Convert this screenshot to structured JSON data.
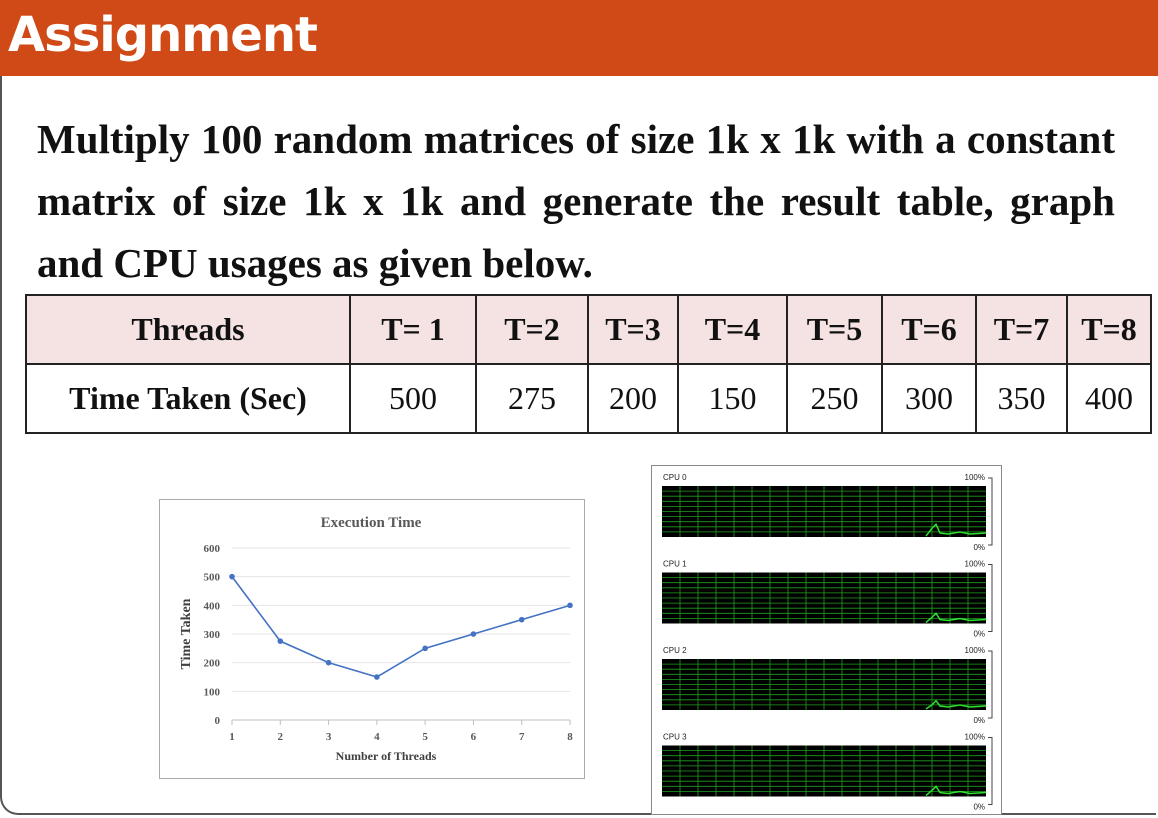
{
  "header": {
    "title": "Assignment"
  },
  "description": "Multiply 100 random matrices of size 1k x 1k with a constant matrix of size 1k x 1k and generate the result table, graph and CPU usages as given below.",
  "table": {
    "row1_header": "Threads",
    "row2_header": "Time Taken (Sec)",
    "threads": [
      "T= 1",
      "T=2",
      "T=3",
      "T=4",
      "T=5",
      "T=6",
      "T=7",
      "T=8"
    ],
    "times": [
      "500",
      "275",
      "200",
      "150",
      "250",
      "300",
      "350",
      "400"
    ]
  },
  "chart_data": {
    "type": "line",
    "title": "Execution Time",
    "xlabel": "Number of Threads",
    "ylabel": "Time Taken",
    "x": [
      1,
      2,
      3,
      4,
      5,
      6,
      7,
      8
    ],
    "values": [
      500,
      275,
      200,
      150,
      250,
      300,
      350,
      400
    ],
    "xticks": [
      "1",
      "2",
      "3",
      "4",
      "5",
      "6",
      "7",
      "8"
    ],
    "yticks": [
      "0",
      "100",
      "200",
      "300",
      "400",
      "500",
      "600"
    ],
    "ylim": [
      0,
      600
    ],
    "grid": true,
    "line_color": "#4472c4"
  },
  "cpu": {
    "panels": [
      {
        "label": "CPU 0",
        "max_label": "100%",
        "min_label": "0%"
      },
      {
        "label": "CPU 1",
        "max_label": "100%",
        "min_label": "0%"
      },
      {
        "label": "CPU 2",
        "max_label": "100%",
        "min_label": "0%"
      },
      {
        "label": "CPU 3",
        "max_label": "100%",
        "min_label": "0%"
      }
    ],
    "grid_color": "#1fa01f",
    "trace_color": "#2fe02f"
  }
}
